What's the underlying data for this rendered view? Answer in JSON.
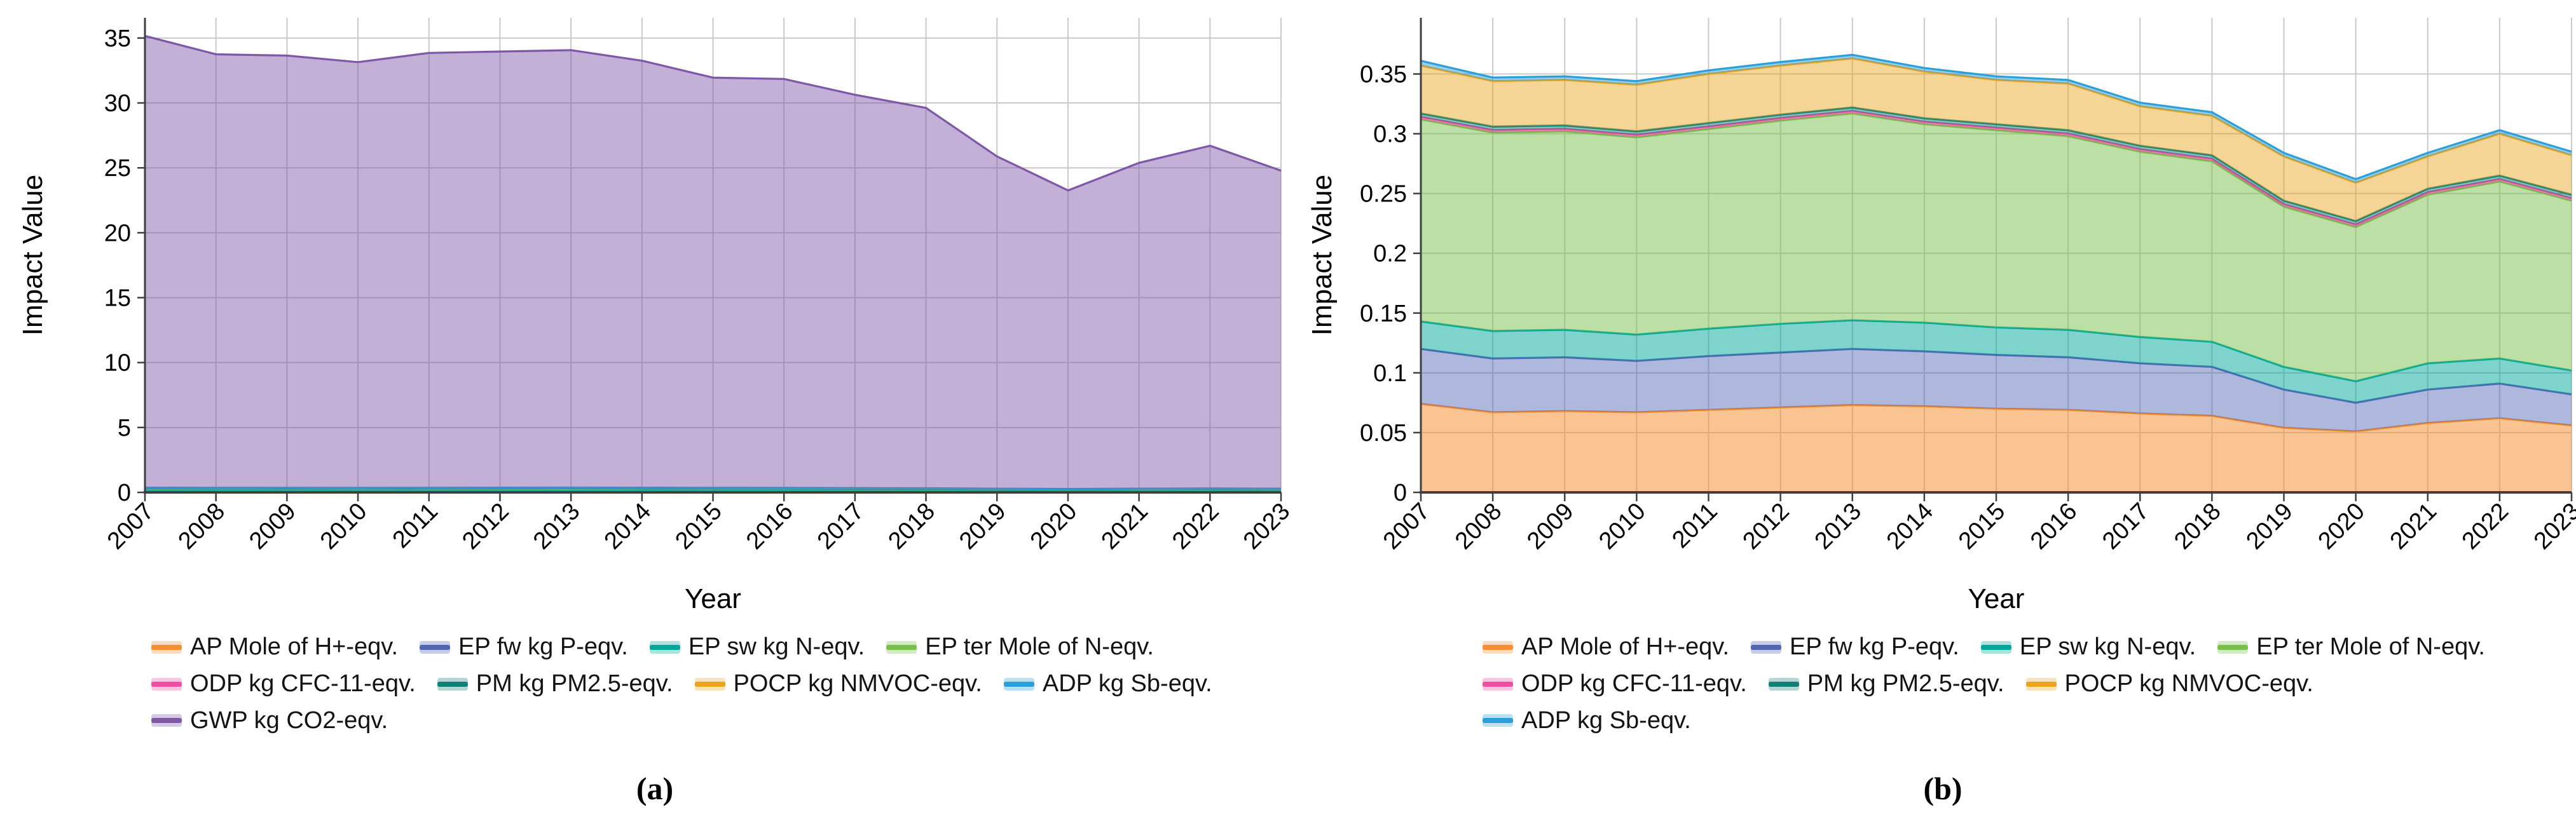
{
  "figure": {
    "caption_a": "(a)",
    "caption_b": "(b)"
  },
  "axes": {
    "x_label": "Year",
    "y_label": "Impact Value"
  },
  "colors": {
    "grid": "#c9c9c9",
    "axis": "#3f3f3f",
    "text": "#000000"
  },
  "chart_data": [
    {
      "id": "a",
      "type": "area",
      "stacked": true,
      "title": "",
      "xlabel": "Year",
      "ylabel": "Impact Value",
      "ylim": [
        0,
        36.56
      ],
      "yticks": [
        0,
        5,
        10,
        15,
        20,
        25,
        30,
        35
      ],
      "grid": true,
      "legend_position": "bottom",
      "categories": [
        "2007",
        "2008",
        "2009",
        "2010",
        "2011",
        "2012",
        "2013",
        "2014",
        "2015",
        "2016",
        "2017",
        "2018",
        "2019",
        "2020",
        "2021",
        "2022",
        "2023"
      ],
      "series": [
        {
          "name": "AP",
          "label": "AP Mole of H+-eqv.",
          "color": "#F68D2E",
          "fill_opacity": 0.52,
          "values": [
            0.074,
            0.067,
            0.068,
            0.067,
            0.069,
            0.071,
            0.073,
            0.072,
            0.07,
            0.069,
            0.066,
            0.064,
            0.054,
            0.051,
            0.058,
            0.062,
            0.056
          ]
        },
        {
          "name": "EP_fw",
          "label": "EP fw kg P-eqv.",
          "color": "#5265B4",
          "fill_opacity": 0.47,
          "values": [
            0.046,
            0.045,
            0.045,
            0.043,
            0.045,
            0.046,
            0.047,
            0.046,
            0.045,
            0.044,
            0.042,
            0.041,
            0.032,
            0.024,
            0.028,
            0.029,
            0.026
          ]
        },
        {
          "name": "EP_sw",
          "label": "EP sw kg N-eqv.",
          "color": "#00A79B",
          "fill_opacity": 0.5,
          "values": [
            0.023,
            0.023,
            0.023,
            0.022,
            0.023,
            0.024,
            0.024,
            0.024,
            0.023,
            0.023,
            0.022,
            0.021,
            0.019,
            0.018,
            0.022,
            0.021,
            0.02
          ]
        },
        {
          "name": "EP_ter",
          "label": "EP ter Mole of N-eqv.",
          "color": "#77C04A",
          "fill_opacity": 0.5,
          "values": [
            0.169,
            0.166,
            0.166,
            0.165,
            0.167,
            0.17,
            0.173,
            0.166,
            0.165,
            0.162,
            0.155,
            0.151,
            0.134,
            0.129,
            0.141,
            0.148,
            0.142
          ]
        },
        {
          "name": "ODP",
          "label": "ODP kg CFC-11-eqv.",
          "color": "#EC4FA4",
          "fill_opacity": 0.45,
          "values": [
            0.002,
            0.002,
            0.002,
            0.002,
            0.002,
            0.002,
            0.002,
            0.002,
            0.002,
            0.002,
            0.002,
            0.002,
            0.002,
            0.002,
            0.002,
            0.002,
            0.002
          ]
        },
        {
          "name": "PM",
          "label": "PM kg PM2.5-eqv.",
          "color": "#128077",
          "fill_opacity": 0.5,
          "values": [
            0.003,
            0.003,
            0.003,
            0.003,
            0.003,
            0.003,
            0.003,
            0.003,
            0.003,
            0.003,
            0.003,
            0.003,
            0.003,
            0.003,
            0.003,
            0.003,
            0.003
          ]
        },
        {
          "name": "POCP",
          "label": "POCP kg NMVOC-eqv.",
          "color": "#E9A51F",
          "fill_opacity": 0.47,
          "values": [
            0.04,
            0.038,
            0.038,
            0.039,
            0.041,
            0.041,
            0.041,
            0.039,
            0.037,
            0.039,
            0.033,
            0.033,
            0.037,
            0.032,
            0.027,
            0.035,
            0.033
          ]
        },
        {
          "name": "ADP",
          "label": "ADP kg Sb-eqv.",
          "color": "#2D9FD8",
          "fill_opacity": 0.5,
          "values": [
            0.004,
            0.003,
            0.003,
            0.003,
            0.003,
            0.003,
            0.003,
            0.003,
            0.003,
            0.003,
            0.003,
            0.003,
            0.003,
            0.003,
            0.003,
            0.003,
            0.003
          ]
        },
        {
          "name": "GWP",
          "label": "GWP kg CO2-eqv.",
          "color": "#7E57A8",
          "fill_opacity": 0.47,
          "values": [
            34.8,
            33.4,
            33.3,
            32.8,
            33.5,
            33.6,
            33.7,
            32.9,
            31.6,
            31.5,
            30.3,
            29.3,
            25.6,
            23.0,
            25.1,
            26.4,
            24.5
          ]
        }
      ],
      "legend_rows": [
        [
          "AP",
          "EP_fw",
          "EP_sw",
          "EP_ter"
        ],
        [
          "ODP",
          "PM",
          "POCP",
          "ADP"
        ],
        [
          "GWP"
        ]
      ]
    },
    {
      "id": "b",
      "type": "area",
      "stacked": true,
      "title": "",
      "xlabel": "Year",
      "ylabel": "Impact Value",
      "ylim": [
        0,
        0.397
      ],
      "yticks": [
        0,
        0.05,
        0.1,
        0.15,
        0.2,
        0.25,
        0.3,
        0.35
      ],
      "grid": true,
      "legend_position": "bottom",
      "categories": [
        "2007",
        "2008",
        "2009",
        "2010",
        "2011",
        "2012",
        "2013",
        "2014",
        "2015",
        "2016",
        "2017",
        "2018",
        "2019",
        "2020",
        "2021",
        "2022",
        "2023"
      ],
      "series": [
        {
          "name": "AP",
          "label": "AP Mole of H+-eqv.",
          "color": "#F68D2E",
          "fill_opacity": 0.52,
          "values": [
            0.074,
            0.067,
            0.068,
            0.067,
            0.069,
            0.071,
            0.073,
            0.072,
            0.07,
            0.069,
            0.066,
            0.064,
            0.054,
            0.051,
            0.058,
            0.062,
            0.056
          ]
        },
        {
          "name": "EP_fw",
          "label": "EP fw kg P-eqv.",
          "color": "#5265B4",
          "fill_opacity": 0.47,
          "values": [
            0.046,
            0.045,
            0.045,
            0.043,
            0.045,
            0.046,
            0.047,
            0.046,
            0.045,
            0.044,
            0.042,
            0.041,
            0.032,
            0.024,
            0.028,
            0.029,
            0.026
          ]
        },
        {
          "name": "EP_sw",
          "label": "EP sw kg N-eqv.",
          "color": "#00A79B",
          "fill_opacity": 0.5,
          "values": [
            0.023,
            0.023,
            0.023,
            0.022,
            0.023,
            0.024,
            0.024,
            0.024,
            0.023,
            0.023,
            0.022,
            0.021,
            0.019,
            0.018,
            0.022,
            0.021,
            0.02
          ]
        },
        {
          "name": "EP_ter",
          "label": "EP ter Mole of N-eqv.",
          "color": "#77C04A",
          "fill_opacity": 0.5,
          "values": [
            0.169,
            0.166,
            0.166,
            0.165,
            0.167,
            0.17,
            0.173,
            0.166,
            0.165,
            0.162,
            0.155,
            0.151,
            0.134,
            0.129,
            0.141,
            0.148,
            0.142
          ]
        },
        {
          "name": "ODP",
          "label": "ODP kg CFC-11-eqv.",
          "color": "#EC4FA4",
          "fill_opacity": 0.45,
          "values": [
            0.002,
            0.002,
            0.002,
            0.002,
            0.002,
            0.002,
            0.002,
            0.002,
            0.002,
            0.002,
            0.002,
            0.002,
            0.002,
            0.002,
            0.002,
            0.002,
            0.002
          ]
        },
        {
          "name": "PM",
          "label": "PM kg PM2.5-eqv.",
          "color": "#128077",
          "fill_opacity": 0.5,
          "values": [
            0.003,
            0.003,
            0.003,
            0.003,
            0.003,
            0.003,
            0.003,
            0.003,
            0.003,
            0.003,
            0.003,
            0.003,
            0.003,
            0.003,
            0.003,
            0.003,
            0.003
          ]
        },
        {
          "name": "POCP",
          "label": "POCP kg NMVOC-eqv.",
          "color": "#E9A51F",
          "fill_opacity": 0.47,
          "values": [
            0.04,
            0.038,
            0.038,
            0.039,
            0.041,
            0.041,
            0.041,
            0.039,
            0.037,
            0.039,
            0.033,
            0.033,
            0.037,
            0.032,
            0.027,
            0.035,
            0.033
          ]
        },
        {
          "name": "ADP",
          "label": "ADP kg Sb-eqv.",
          "color": "#2D9FD8",
          "fill_opacity": 0.5,
          "values": [
            0.004,
            0.003,
            0.003,
            0.003,
            0.003,
            0.003,
            0.003,
            0.003,
            0.003,
            0.003,
            0.003,
            0.003,
            0.003,
            0.003,
            0.003,
            0.003,
            0.003
          ]
        }
      ],
      "legend_rows": [
        [
          "AP",
          "EP_fw",
          "EP_sw",
          "EP_ter"
        ],
        [
          "ODP",
          "PM",
          "POCP"
        ],
        [
          "ADP"
        ]
      ]
    }
  ]
}
